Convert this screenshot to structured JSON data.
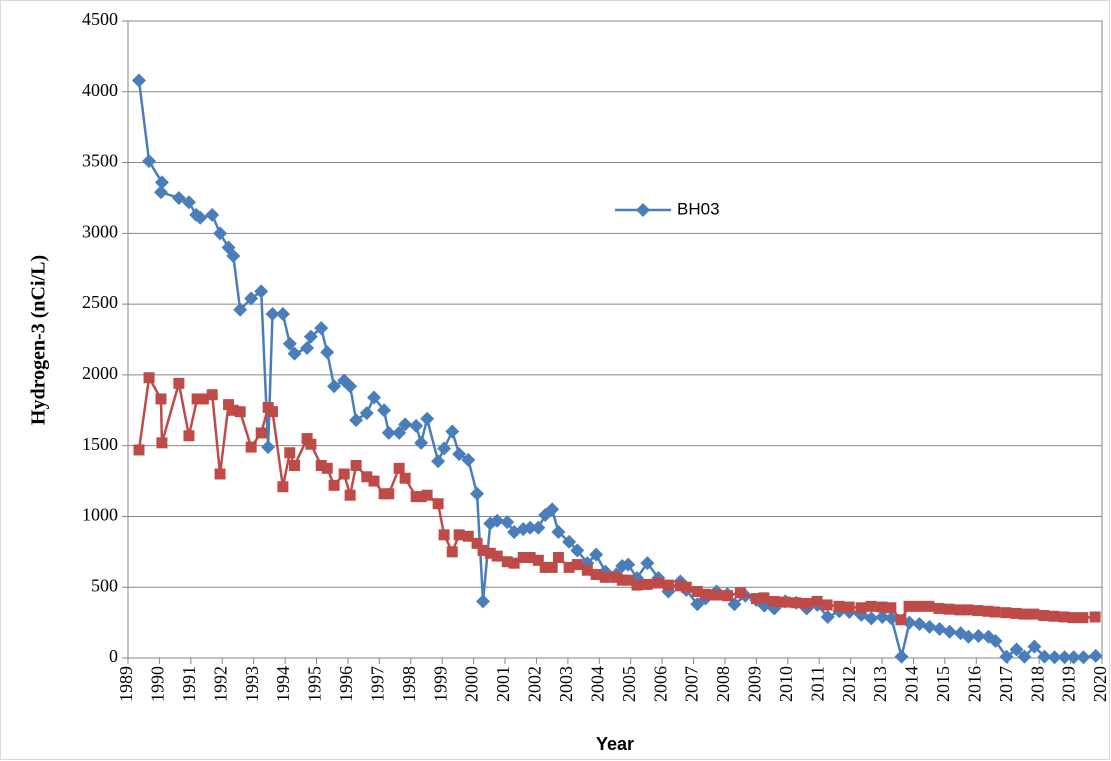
{
  "chart_data": {
    "type": "line",
    "y_label": "Hydrogen-3 (nCi/L)",
    "x_label": "Year",
    "xlim": [
      1989,
      2020
    ],
    "xticks": [
      1989,
      1990,
      1991,
      1992,
      1993,
      1994,
      1995,
      1996,
      1997,
      1998,
      1999,
      2000,
      2001,
      2002,
      2003,
      2004,
      2005,
      2006,
      2007,
      2008,
      2009,
      2010,
      2011,
      2012,
      2013,
      2014,
      2015,
      2016,
      2017,
      2018,
      2019,
      2020
    ],
    "ylim": [
      0,
      4500
    ],
    "yticks": [
      0,
      500,
      1000,
      1500,
      2000,
      2500,
      3000,
      3500,
      4000,
      4500
    ],
    "grid": true,
    "legend": "center",
    "series": [
      {
        "name": "BH03",
        "color": "#4a7ebb",
        "marker": "diamond",
        "x": [
          1989.35,
          1989.67,
          1990.08,
          1990.05,
          1990.62,
          1990.94,
          1991.17,
          1991.3,
          1991.68,
          1991.93,
          1992.2,
          1992.35,
          1992.57,
          1992.92,
          1993.24,
          1993.46,
          1993.6,
          1993.93,
          1994.15,
          1994.3,
          1994.7,
          1994.82,
          1995.15,
          1995.34,
          1995.56,
          1995.88,
          1996.07,
          1996.26,
          1996.6,
          1996.83,
          1997.15,
          1997.3,
          1997.63,
          1997.82,
          1998.17,
          1998.33,
          1998.52,
          1998.87,
          1999.06,
          1999.32,
          1999.54,
          1999.83,
          2000.11,
          2000.3,
          2000.53,
          2000.75,
          2001.07,
          2001.29,
          2001.58,
          2001.8,
          2002.06,
          2002.28,
          2002.5,
          2002.7,
          2003.04,
          2003.3,
          2003.62,
          2003.9,
          2004.19,
          2004.54,
          2004.73,
          2004.92,
          2005.2,
          2005.53,
          2005.88,
          2006.2,
          2006.58,
          2006.77,
          2007.12,
          2007.38,
          2007.73,
          2008.08,
          2008.3,
          2008.65,
          2009.0,
          2009.25,
          2009.57,
          2009.92,
          2010.27,
          2010.6,
          2010.94,
          2011.27,
          2011.64,
          2011.96,
          2012.34,
          2012.66,
          2013.01,
          2013.3,
          2013.62,
          2013.87,
          2014.19,
          2014.51,
          2014.83,
          2015.15,
          2015.5,
          2015.75,
          2016.07,
          2016.39,
          2016.61,
          2016.96,
          2017.28,
          2017.53,
          2017.85,
          2018.17,
          2018.49,
          2018.81,
          2019.1,
          2019.41,
          2019.8
        ],
        "values": [
          4080,
          3510,
          3360,
          3290,
          3250,
          3220,
          3130,
          3110,
          3130,
          3000,
          2900,
          2840,
          2460,
          2540,
          2590,
          1490,
          2430,
          2430,
          2220,
          2150,
          2190,
          2270,
          2330,
          2160,
          1920,
          1960,
          1920,
          1680,
          1730,
          1840,
          1750,
          1590,
          1590,
          1650,
          1640,
          1520,
          1690,
          1390,
          1480,
          1600,
          1440,
          1400,
          1160,
          400,
          950,
          970,
          960,
          890,
          910,
          920,
          920,
          1010,
          1050,
          890,
          820,
          760,
          670,
          730,
          610,
          590,
          650,
          660,
          565,
          670,
          565,
          470,
          540,
          480,
          380,
          420,
          470,
          450,
          380,
          440,
          410,
          370,
          350,
          400,
          390,
          350,
          375,
          290,
          330,
          325,
          305,
          280,
          290,
          280,
          10,
          250,
          240,
          220,
          205,
          185,
          175,
          150,
          155,
          150,
          120,
          10,
          60,
          10,
          80,
          10,
          5,
          5,
          5,
          5,
          15
        ]
      },
      {
        "color": "#be4b48",
        "marker": "square",
        "x": [
          1989.35,
          1989.67,
          1990.05,
          1990.08,
          1990.62,
          1990.94,
          1991.2,
          1991.4,
          1991.68,
          1991.93,
          1992.2,
          1992.35,
          1992.57,
          1992.92,
          1993.24,
          1993.46,
          1993.6,
          1993.93,
          1994.15,
          1994.3,
          1994.7,
          1994.82,
          1995.15,
          1995.34,
          1995.56,
          1995.88,
          1996.07,
          1996.26,
          1996.6,
          1996.83,
          1997.15,
          1997.3,
          1997.63,
          1997.82,
          1998.17,
          1998.33,
          1998.52,
          1998.87,
          1999.06,
          1999.32,
          1999.54,
          1999.83,
          2000.11,
          2000.3,
          2000.53,
          2000.75,
          2001.07,
          2001.29,
          2001.58,
          2001.8,
          2002.06,
          2002.28,
          2002.5,
          2002.7,
          2003.04,
          2003.3,
          2003.62,
          2003.9,
          2004.19,
          2004.54,
          2004.73,
          2004.92,
          2005.2,
          2005.53,
          2005.88,
          2006.2,
          2006.58,
          2006.77,
          2007.12,
          2007.38,
          2007.73,
          2008.08,
          2008.49,
          2009.0,
          2009.24,
          2009.56,
          2009.91,
          2010.26,
          2010.58,
          2010.93,
          2011.25,
          2011.63,
          2011.95,
          2012.33,
          2012.65,
          2013.0,
          2013.28,
          2013.6,
          2013.86,
          2014.17,
          2014.49,
          2014.81,
          2015.13,
          2015.48,
          2015.73,
          2016.05,
          2016.37,
          2016.59,
          2016.94,
          2017.26,
          2017.52,
          2017.83,
          2018.15,
          2018.47,
          2018.79,
          2019.08,
          2019.39,
          2019.78
        ],
        "values": [
          1470,
          1980,
          1830,
          1520,
          1940,
          1570,
          1830,
          1830,
          1860,
          1300,
          1790,
          1750,
          1740,
          1490,
          1590,
          1770,
          1740,
          1210,
          1450,
          1360,
          1550,
          1510,
          1360,
          1340,
          1220,
          1300,
          1150,
          1360,
          1280,
          1250,
          1160,
          1160,
          1340,
          1270,
          1140,
          1140,
          1150,
          1090,
          870,
          750,
          870,
          860,
          810,
          760,
          740,
          720,
          680,
          670,
          710,
          710,
          690,
          640,
          640,
          710,
          640,
          660,
          620,
          590,
          570,
          570,
          550,
          550,
          515,
          520,
          530,
          515,
          510,
          500,
          470,
          450,
          445,
          440,
          460,
          420,
          425,
          400,
          395,
          390,
          385,
          400,
          375,
          365,
          360,
          355,
          365,
          360,
          355,
          270,
          365,
          365,
          365,
          350,
          345,
          340,
          340,
          335,
          330,
          325,
          320,
          315,
          310,
          310,
          300,
          295,
          290,
          285,
          285,
          290
        ]
      }
    ]
  }
}
